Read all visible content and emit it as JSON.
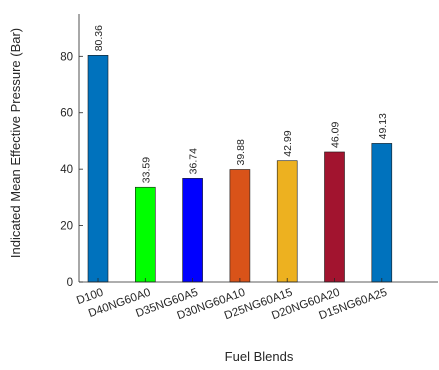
{
  "chart_data": {
    "type": "bar",
    "categories": [
      "D100",
      "D40NG60A0",
      "D35NG60A5",
      "D30NG60A10",
      "D25NG60A15",
      "D20NG60A20",
      "D15NG60A25"
    ],
    "values": [
      80.36,
      33.59,
      36.74,
      39.88,
      42.99,
      46.09,
      49.13
    ],
    "data_labels": [
      "80.36",
      "33.59",
      "36.74",
      "39.88",
      "42.99",
      "46.09",
      "49.13"
    ],
    "bar_colors": [
      "#0072BD",
      "#00FF00",
      "#0000FF",
      "#D95319",
      "#EDB120",
      "#A2142F",
      "#0072BD"
    ],
    "title": "",
    "xlabel": "Fuel Blends",
    "ylabel": "Indicated Mean Effective Pressure (Bar)",
    "ylim": [
      0,
      95
    ],
    "yticks": [
      0,
      20,
      40,
      60,
      80
    ],
    "grid": false,
    "legend": "none"
  }
}
